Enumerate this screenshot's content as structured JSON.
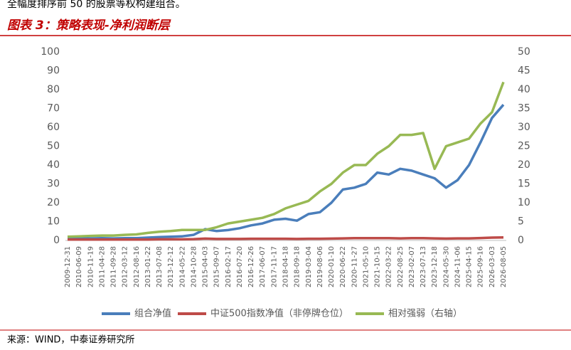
{
  "header_text": "全幅度排序前 50 的股票等权构建组合。",
  "source": "来源：WIND，中泰证券研究所",
  "chart_data": {
    "type": "line",
    "title": "图表 3：策略表现-净利润断层",
    "categories": [
      "2009-12-31",
      "2010-06-09",
      "2010-11-19",
      "2011-04-28",
      "2011-09-28",
      "2012-03-12",
      "2012-08-16",
      "2013-01-22",
      "2013-07-08",
      "2013-12-12",
      "2014-05-22",
      "2014-10-28",
      "2015-04-03",
      "2015-09-07",
      "2016-02-17",
      "2016-07-20",
      "2016-12-26",
      "2017-06-07",
      "2017-11-17",
      "2018-04-18",
      "2018-09-18",
      "2019-03-04",
      "2019-08-06",
      "2020-01-10",
      "2020-06-22",
      "2020-11-27",
      "2021-05-10",
      "2021-10-15",
      "2022-03-22",
      "2022-08-25",
      "2023-02-07",
      "2023-07-13",
      "2023-12-18",
      "2024-05-30",
      "2024-11-06",
      "2025-04-15",
      "2025-09-16",
      "2026-03-03",
      "2026-08-05"
    ],
    "series": [
      {
        "name": "组合净值",
        "color": "#4a7ebb",
        "axis": "y",
        "values": [
          1.0,
          1.0,
          1.1,
          1.2,
          1.1,
          1.2,
          1.2,
          1.5,
          1.8,
          2.0,
          2.2,
          3.0,
          6.0,
          5.0,
          5.5,
          6.5,
          8.0,
          9.0,
          11.0,
          11.5,
          10.5,
          14,
          15,
          20,
          27,
          28,
          30,
          36,
          35,
          38,
          37,
          35,
          33,
          28,
          32,
          40,
          52,
          65,
          72
        ]
      },
      {
        "name": "中证500指数净值（非停牌仓位）",
        "color": "#be4b48",
        "axis": "y",
        "values": [
          0.5,
          0.5,
          0.5,
          0.5,
          0.5,
          0.5,
          0.5,
          0.5,
          0.6,
          0.6,
          0.6,
          0.7,
          1.0,
          0.8,
          0.8,
          0.8,
          0.9,
          0.9,
          0.9,
          0.9,
          0.8,
          0.9,
          0.9,
          1.0,
          1.1,
          1.2,
          1.2,
          1.2,
          1.2,
          1.1,
          1.2,
          1.2,
          1.1,
          1.0,
          1.1,
          1.1,
          1.3,
          1.5,
          1.6
        ]
      },
      {
        "name": "相对强弱（右轴）",
        "color": "#98b954",
        "axis": "y2",
        "values": [
          1.0,
          1.1,
          1.2,
          1.3,
          1.3,
          1.5,
          1.6,
          2.0,
          2.3,
          2.5,
          2.8,
          2.8,
          2.8,
          3.5,
          4.5,
          5,
          5.5,
          6,
          7,
          8.5,
          9.5,
          10.5,
          13,
          15,
          18,
          20,
          20,
          23,
          25,
          28,
          28,
          28.5,
          19,
          25,
          26,
          27,
          31,
          34,
          42
        ]
      }
    ],
    "ylim": [
      0,
      100
    ],
    "yticks": [
      0,
      10,
      20,
      30,
      40,
      50,
      60,
      70,
      80,
      90,
      100
    ],
    "y2lim": [
      0,
      50
    ],
    "y2ticks": [
      0,
      5,
      10,
      15,
      20,
      25,
      30,
      35,
      40,
      45,
      50
    ],
    "grid": false,
    "legend": "bottom"
  }
}
